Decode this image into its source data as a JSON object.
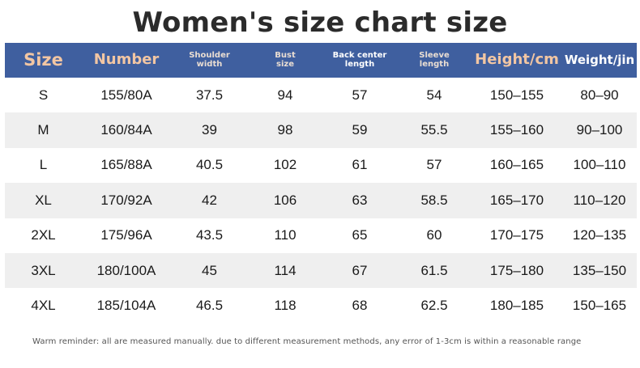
{
  "title": "Women's size chart size",
  "headers": {
    "size": "Size",
    "number": "Number",
    "shoulder_line1": "Shoulder",
    "shoulder_line2": "width",
    "bust_line1": "Bust",
    "bust_line2": "size",
    "back_line1": "Back center",
    "back_line2": "length",
    "sleeve_line1": "Sleeve",
    "sleeve_line2": "length",
    "height": "Height/cm",
    "weight": "Weight/jin"
  },
  "rows": [
    {
      "size": "S",
      "number": "155/80A",
      "shoulder": "37.5",
      "bust": "94",
      "back": "57",
      "sleeve": "54",
      "height": "150–155",
      "weight": "80–90"
    },
    {
      "size": "M",
      "number": "160/84A",
      "shoulder": "39",
      "bust": "98",
      "back": "59",
      "sleeve": "55.5",
      "height": "155–160",
      "weight": "90–100"
    },
    {
      "size": "L",
      "number": "165/88A",
      "shoulder": "40.5",
      "bust": "102",
      "back": "61",
      "sleeve": "57",
      "height": "160–165",
      "weight": "100–110"
    },
    {
      "size": "XL",
      "number": "170/92A",
      "shoulder": "42",
      "bust": "106",
      "back": "63",
      "sleeve": "58.5",
      "height": "165–170",
      "weight": "110–120"
    },
    {
      "size": "2XL",
      "number": "175/96A",
      "shoulder": "43.5",
      "bust": "110",
      "back": "65",
      "sleeve": "60",
      "height": "170–175",
      "weight": "120–135"
    },
    {
      "size": "3XL",
      "number": "180/100A",
      "shoulder": "45",
      "bust": "114",
      "back": "67",
      "sleeve": "61.5",
      "height": "175–180",
      "weight": "135–150"
    },
    {
      "size": "4XL",
      "number": "185/104A",
      "shoulder": "46.5",
      "bust": "118",
      "back": "68",
      "sleeve": "62.5",
      "height": "180–185",
      "weight": "150–165"
    }
  ],
  "note": "Warm reminder: all are measured manually. due to different measurement methods, any error of 1-3cm is within a reasonable range",
  "colors": {
    "header_bg": "#3f5f9f",
    "header_accent": "#f2c6a3",
    "row_alt": "#efefef"
  }
}
